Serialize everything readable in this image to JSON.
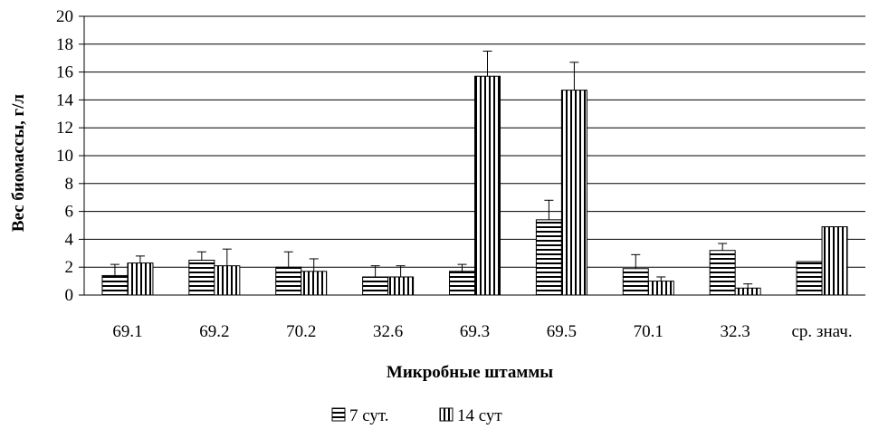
{
  "chart_data": {
    "type": "bar",
    "title": "",
    "xlabel": "Микробные штаммы",
    "ylabel": "Вес биомассы, г/л",
    "ylim": [
      0,
      20
    ],
    "yticks": [
      "0",
      "2",
      "4",
      "6",
      "8",
      "10",
      "12",
      "14",
      "16",
      "18",
      "20"
    ],
    "grid": "horizontal",
    "legend_position": "bottom-center",
    "categories": [
      "69.1",
      "69.2",
      "70.2",
      "32.6",
      "69.3",
      "69.5",
      "70.1",
      "32.3",
      "ср. знач."
    ],
    "series": [
      {
        "name": "7 сут.",
        "pattern": "horizontal-stripes",
        "values": [
          1.4,
          2.5,
          2.0,
          1.3,
          1.7,
          5.4,
          1.9,
          3.2,
          2.4
        ],
        "errors": [
          0.8,
          0.6,
          1.1,
          0.8,
          0.5,
          1.4,
          1.0,
          0.5,
          null
        ]
      },
      {
        "name": "14 сут",
        "pattern": "vertical-stripes",
        "values": [
          2.3,
          2.1,
          1.7,
          1.3,
          15.7,
          14.7,
          1.0,
          0.5,
          4.9
        ],
        "errors": [
          0.5,
          1.2,
          0.9,
          0.8,
          1.8,
          2.0,
          0.3,
          0.3,
          null
        ]
      }
    ]
  }
}
